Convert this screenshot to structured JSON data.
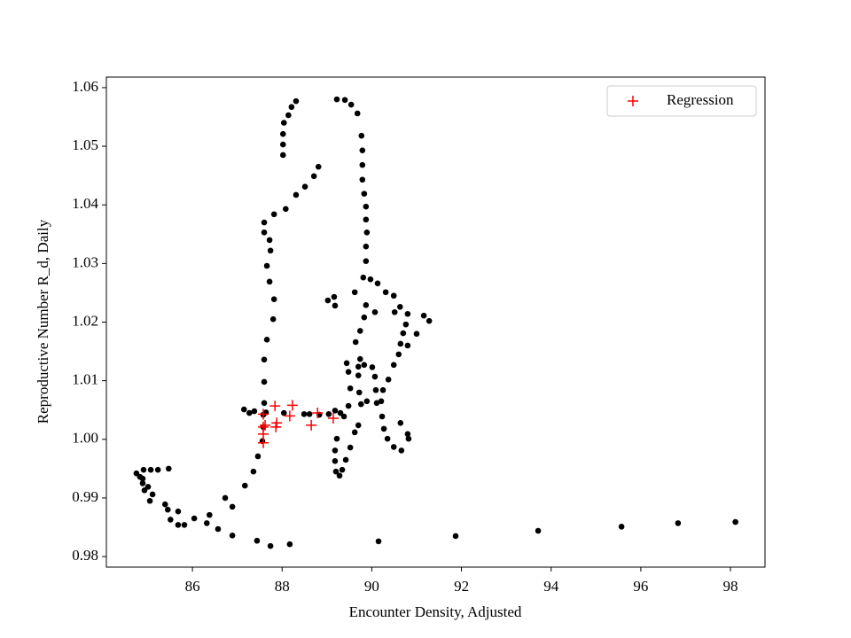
{
  "chart_data": {
    "type": "scatter",
    "xlabel": "Encounter Density, Adjusted",
    "ylabel": "Reproductive Number R_d, Daily",
    "xlim": [
      84.08,
      98.77
    ],
    "ylim": [
      0.9782,
      1.0618
    ],
    "xticks": [
      86,
      88,
      90,
      92,
      94,
      96,
      98
    ],
    "yticks": [
      0.98,
      0.99,
      {
        "value": 1,
        "label": "1.00"
      },
      1.01,
      1.02,
      1.03,
      1.04,
      1.05,
      1.06
    ],
    "legend": "upper right",
    "series": [
      {
        "color": "#000000",
        "marker": "o",
        "x": [
          98.11,
          96.83,
          95.57,
          93.71,
          91.87,
          90.15,
          88.17,
          87.74,
          87.44,
          86.89,
          86.57,
          86.38,
          86.04,
          86.32,
          85.82,
          85.68,
          85.68,
          85.51,
          85.45,
          85.39,
          85.05,
          84.93,
          85.01,
          85.11,
          84.89,
          84.83,
          84.75,
          84.91,
          85.07,
          85.23,
          85.47,
          84.89,
          86.73,
          86.89,
          87.17,
          87.36,
          87.46,
          87.56,
          87.58,
          87.58,
          87.6,
          87.6,
          87.6,
          87.66,
          87.8,
          87.82,
          87.72,
          87.66,
          87.74,
          87.72,
          87.6,
          87.6,
          87.82,
          88.08,
          88.31,
          88.51,
          88.71,
          88.81,
          88.02,
          88.02,
          88.02,
          88.04,
          88.14,
          88.21,
          88.31,
          89.22,
          89.4,
          89.54,
          89.68,
          89.77,
          89.79,
          89.79,
          89.79,
          89.83,
          89.87,
          89.87,
          89.89,
          89.87,
          89.87,
          89.81,
          89.97,
          90.13,
          90.31,
          90.49,
          90.63,
          90.8,
          90.76,
          90.7,
          90.64,
          90.6,
          90.49,
          90.37,
          90.25,
          90.21,
          90.23,
          90.27,
          90.35,
          90.49,
          90.66,
          90.82,
          90.64,
          89.7,
          89.62,
          89.52,
          89.42,
          89.34,
          89.28,
          89.2,
          89.18,
          89.18,
          89.22,
          89.3,
          89.18,
          89.04,
          88.83,
          88.61,
          88.49,
          88.04,
          87.64,
          87.38,
          87.15,
          87.27,
          89.7,
          89.83,
          90.01,
          90.07,
          90.09,
          90.11,
          89.89,
          89.76,
          89.72,
          89.7,
          89.74,
          89.64,
          89.74,
          89.83,
          89.87,
          89.62,
          89.16,
          89.02,
          89.18,
          89.44,
          89.48,
          89.52,
          89.48,
          89.38,
          91.16,
          91.28,
          91.0,
          90.8,
          90.07,
          90.51,
          90.8
        ],
        "values": [
          0.9859,
          0.9857,
          0.9851,
          0.9844,
          0.9835,
          0.9826,
          0.9821,
          0.9818,
          0.9827,
          0.9836,
          0.9847,
          0.9871,
          0.9865,
          0.9857,
          0.9854,
          0.9854,
          0.9877,
          0.9863,
          0.988,
          0.9889,
          0.9895,
          0.9913,
          0.9919,
          0.9906,
          0.9925,
          0.9936,
          0.9942,
          0.9948,
          0.9948,
          0.9948,
          0.995,
          0.9933,
          0.99,
          0.9885,
          0.9921,
          0.9945,
          0.9971,
          0.9997,
          1.0021,
          1.0042,
          1.0062,
          1.0098,
          1.0136,
          1.017,
          1.0205,
          1.0239,
          1.0269,
          1.0296,
          1.0322,
          1.034,
          1.0353,
          1.037,
          1.0384,
          1.0393,
          1.0417,
          1.0431,
          1.0449,
          1.0465,
          1.0485,
          1.0503,
          1.0521,
          1.054,
          1.0553,
          1.0567,
          1.0577,
          1.058,
          1.0579,
          1.0571,
          1.0556,
          1.0518,
          1.0493,
          1.0468,
          1.0443,
          1.0419,
          1.0397,
          1.0375,
          1.0353,
          1.0329,
          1.0304,
          1.0276,
          1.0273,
          1.0266,
          1.0251,
          1.0245,
          1.0226,
          1.0214,
          1.0196,
          1.0181,
          1.0163,
          1.0145,
          1.0127,
          1.0102,
          1.0084,
          1.0065,
          1.0039,
          1.0018,
          1.0001,
          0.9987,
          0.9981,
          1.0001,
          1.0028,
          1.0024,
          1.0012,
          0.9986,
          0.9965,
          0.9948,
          0.9938,
          0.9945,
          0.9963,
          0.9981,
          1.0001,
          1.0045,
          1.0049,
          1.0043,
          1.0042,
          1.0043,
          1.0043,
          1.0045,
          1.0046,
          1.0048,
          1.0051,
          1.0045,
          1.0124,
          1.0127,
          1.0123,
          1.0107,
          1.0084,
          1.0062,
          1.0065,
          1.006,
          1.008,
          1.0109,
          1.0137,
          1.0166,
          1.0185,
          1.0208,
          1.0229,
          1.0251,
          1.0243,
          1.0237,
          1.0228,
          1.013,
          1.0115,
          1.0087,
          1.0057,
          1.0039,
          1.0211,
          1.0202,
          1.018,
          1.016,
          1.0217,
          1.0217,
          1.0009
        ]
      },
      {
        "name": "Regression",
        "color": "#ff0000",
        "marker": "+",
        "x": [
          87.58,
          87.58,
          87.58,
          87.58,
          87.84,
          87.86,
          87.88,
          88.17,
          88.23,
          88.65,
          88.79,
          89.14,
          87.62
        ],
        "values": [
          1.0043,
          1.0021,
          1.0009,
          0.9994,
          1.0057,
          1.0021,
          1.0028,
          1.004,
          1.0058,
          1.0024,
          1.0045,
          1.0036,
          1.0024
        ]
      }
    ]
  }
}
